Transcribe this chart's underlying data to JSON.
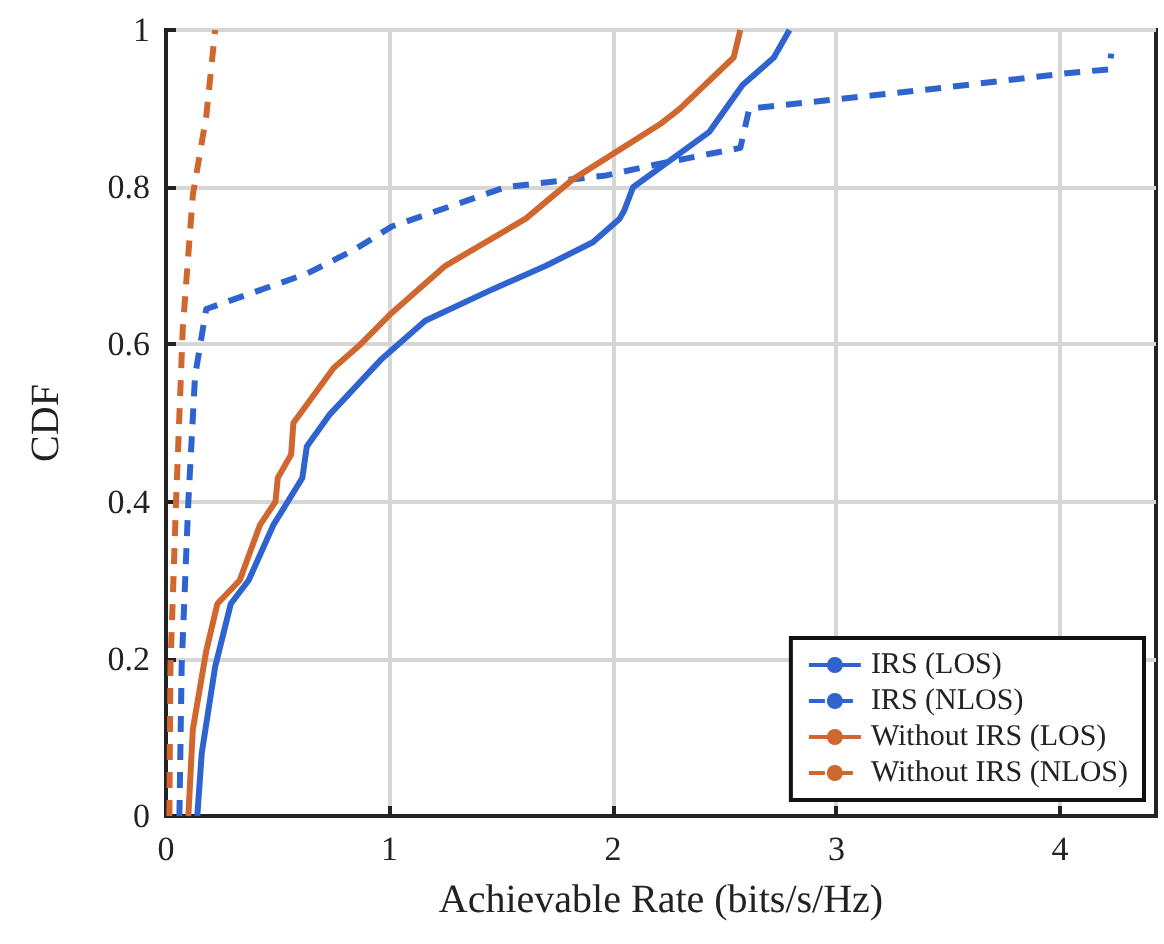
{
  "chart_data": {
    "type": "line",
    "xlabel": "Achievable Rate (bits/s/Hz)",
    "ylabel": "CDF",
    "xlim": [
      0,
      4.43
    ],
    "xticks": [
      0,
      1,
      2,
      3,
      4
    ],
    "ylim": [
      0,
      1
    ],
    "yticks": [
      0,
      0.2,
      0.4,
      0.6,
      0.8,
      1
    ],
    "grid": true,
    "legend": "bottom right",
    "marker": "none",
    "series": [
      {
        "name": "IRS (LOS)",
        "color": "#2f64d0",
        "line_style": "solid",
        "x": [
          0.14,
          0.16,
          0.22,
          0.29,
          0.37,
          0.48,
          0.61,
          0.63,
          0.73,
          0.96,
          1.16,
          1.46,
          1.7,
          1.91,
          2.03,
          2.05,
          2.09,
          2.43,
          2.58,
          2.72,
          2.79
        ],
        "values": [
          0,
          0.08,
          0.19,
          0.27,
          0.3,
          0.37,
          0.43,
          0.47,
          0.51,
          0.58,
          0.63,
          0.67,
          0.7,
          0.73,
          0.76,
          0.77,
          0.8,
          0.87,
          0.93,
          0.965,
          1
        ]
      },
      {
        "name": "IRS (NLOS)",
        "color": "#2f64d0",
        "line_style": "dashed",
        "x": [
          0.06,
          0.07,
          0.1,
          0.13,
          0.18,
          0.63,
          0.84,
          1.01,
          1.52,
          1.97,
          2.21,
          2.57,
          2.61,
          3.43,
          4.03,
          4.22,
          4.23
        ],
        "values": [
          0,
          0.19,
          0.4,
          0.56,
          0.645,
          0.69,
          0.72,
          0.75,
          0.8,
          0.815,
          0.83,
          0.85,
          0.9,
          0.925,
          0.945,
          0.95,
          0.97
        ]
      },
      {
        "name": "Without IRS (LOS)",
        "color": "#d0672e",
        "line_style": "solid",
        "x": [
          0.1,
          0.12,
          0.18,
          0.23,
          0.33,
          0.42,
          0.49,
          0.5,
          0.56,
          0.57,
          0.75,
          0.87,
          1.01,
          1.25,
          1.61,
          1.82,
          2.21,
          2.3,
          2.54,
          2.57
        ],
        "values": [
          0,
          0.11,
          0.21,
          0.27,
          0.3,
          0.37,
          0.4,
          0.43,
          0.46,
          0.5,
          0.57,
          0.6,
          0.64,
          0.7,
          0.76,
          0.81,
          0.88,
          0.9,
          0.965,
          1
        ]
      },
      {
        "name": "Without IRS (NLOS)",
        "color": "#d0672e",
        "line_style": "dashed",
        "x": [
          0.015,
          0.02,
          0.045,
          0.075,
          0.12,
          0.18,
          0.22
        ],
        "values": [
          0,
          0.19,
          0.4,
          0.62,
          0.79,
          0.89,
          1
        ]
      }
    ]
  }
}
